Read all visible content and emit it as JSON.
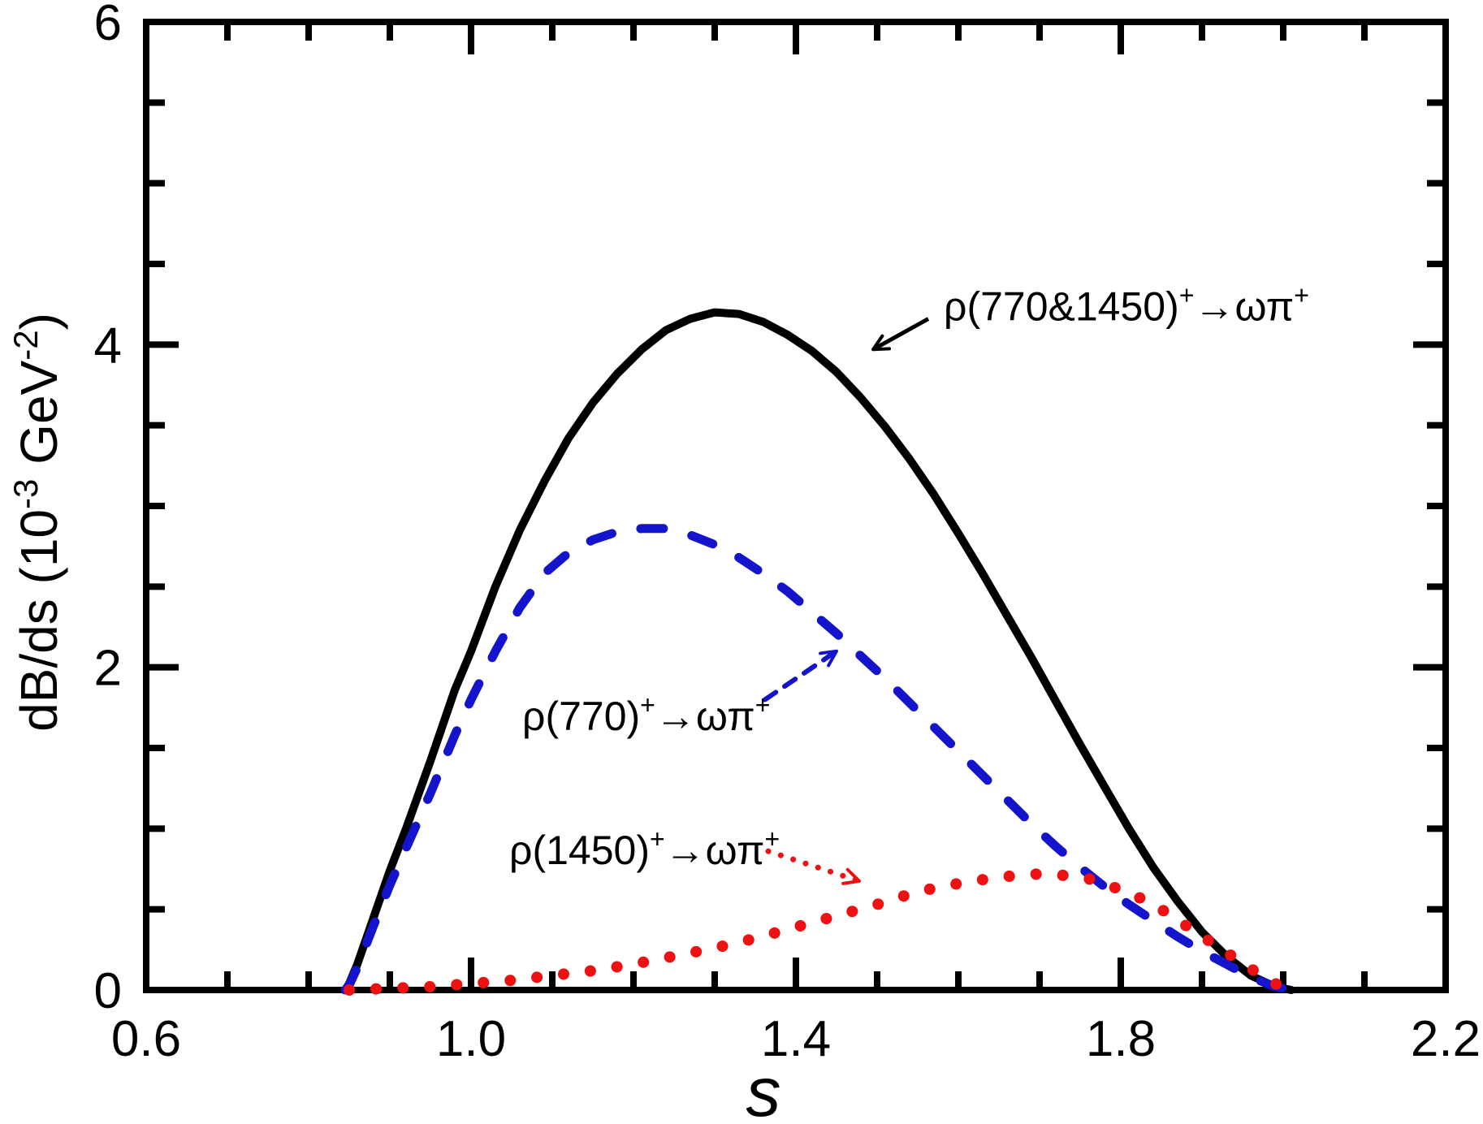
{
  "chart_data": {
    "type": "line",
    "title": "",
    "xlabel": "s",
    "ylabel_parts": [
      {
        "t": "dB/ds (10"
      },
      {
        "t": "-3",
        "sup": true
      },
      {
        "t": " GeV"
      },
      {
        "t": "-2",
        "sup": true
      },
      {
        "t": ")"
      }
    ],
    "background": "#FFFFFF",
    "frame_color": "#000000",
    "grid": false,
    "legend_position": "none (inline annotations with arrows)",
    "x_axis": {
      "min": 0.6,
      "max": 2.2,
      "minor_step": 0.1,
      "major_ticks": [
        {
          "value": 0.6,
          "label": "0.6"
        },
        {
          "value": 1.0,
          "label": "1.0"
        },
        {
          "value": 1.4,
          "label": "1.4"
        },
        {
          "value": 1.8,
          "label": "1.8"
        },
        {
          "value": 2.2,
          "label": "2.2"
        }
      ]
    },
    "y_axis": {
      "min": 0,
      "max": 6,
      "minor_step": 0.5,
      "major_ticks": [
        {
          "value": 0,
          "label": "0"
        },
        {
          "value": 2,
          "label": "2"
        },
        {
          "value": 4,
          "label": "4"
        },
        {
          "value": 6,
          "label": "6"
        }
      ]
    },
    "series": [
      {
        "id": "rho-770-and-1450",
        "label_parts": [
          {
            "t": "ρ(770&1450)"
          },
          {
            "t": "+",
            "sup": true
          },
          {
            "t": "→ωπ"
          },
          {
            "t": "+",
            "sup": true
          }
        ],
        "color": "#000000",
        "style": "solid",
        "peak": {
          "x": 1.3,
          "y": 4.2
        },
        "points": [
          [
            0.845,
            0
          ],
          [
            0.85,
            0.04
          ],
          [
            0.86,
            0.16
          ],
          [
            0.88,
            0.45
          ],
          [
            0.9,
            0.74
          ],
          [
            0.92,
            1.0
          ],
          [
            0.95,
            1.42
          ],
          [
            0.98,
            1.86
          ],
          [
            1.0,
            2.1
          ],
          [
            1.03,
            2.5
          ],
          [
            1.06,
            2.85
          ],
          [
            1.09,
            3.15
          ],
          [
            1.12,
            3.42
          ],
          [
            1.15,
            3.64
          ],
          [
            1.18,
            3.82
          ],
          [
            1.21,
            3.97
          ],
          [
            1.24,
            4.09
          ],
          [
            1.27,
            4.16
          ],
          [
            1.3,
            4.2
          ],
          [
            1.33,
            4.19
          ],
          [
            1.36,
            4.14
          ],
          [
            1.39,
            4.06
          ],
          [
            1.42,
            3.96
          ],
          [
            1.45,
            3.83
          ],
          [
            1.48,
            3.67
          ],
          [
            1.51,
            3.49
          ],
          [
            1.54,
            3.29
          ],
          [
            1.57,
            3.07
          ],
          [
            1.6,
            2.83
          ],
          [
            1.63,
            2.58
          ],
          [
            1.66,
            2.32
          ],
          [
            1.69,
            2.06
          ],
          [
            1.72,
            1.79
          ],
          [
            1.75,
            1.52
          ],
          [
            1.78,
            1.26
          ],
          [
            1.81,
            1.0
          ],
          [
            1.84,
            0.76
          ],
          [
            1.87,
            0.55
          ],
          [
            1.9,
            0.36
          ],
          [
            1.93,
            0.21
          ],
          [
            1.96,
            0.09
          ],
          [
            1.99,
            0.02
          ],
          [
            2.01,
            0
          ]
        ]
      },
      {
        "id": "rho-770",
        "label_parts": [
          {
            "t": "ρ(770)"
          },
          {
            "t": "+",
            "sup": true
          },
          {
            "t": "→ωπ"
          },
          {
            "t": "+",
            "sup": true
          }
        ],
        "color": "#1414CC",
        "style": "dashed",
        "peak": {
          "x": 1.23,
          "y": 2.86
        },
        "points": [
          [
            0.845,
            0
          ],
          [
            0.85,
            0.03
          ],
          [
            0.86,
            0.14
          ],
          [
            0.88,
            0.4
          ],
          [
            0.9,
            0.65
          ],
          [
            0.92,
            0.88
          ],
          [
            0.95,
            1.22
          ],
          [
            0.98,
            1.58
          ],
          [
            1.0,
            1.8
          ],
          [
            1.03,
            2.1
          ],
          [
            1.06,
            2.37
          ],
          [
            1.09,
            2.58
          ],
          [
            1.12,
            2.71
          ],
          [
            1.15,
            2.79
          ],
          [
            1.18,
            2.84
          ],
          [
            1.21,
            2.86
          ],
          [
            1.24,
            2.86
          ],
          [
            1.27,
            2.82
          ],
          [
            1.3,
            2.76
          ],
          [
            1.33,
            2.68
          ],
          [
            1.36,
            2.58
          ],
          [
            1.39,
            2.47
          ],
          [
            1.42,
            2.34
          ],
          [
            1.45,
            2.21
          ],
          [
            1.48,
            2.07
          ],
          [
            1.51,
            1.93
          ],
          [
            1.54,
            1.78
          ],
          [
            1.57,
            1.63
          ],
          [
            1.6,
            1.48
          ],
          [
            1.63,
            1.33
          ],
          [
            1.66,
            1.18
          ],
          [
            1.69,
            1.03
          ],
          [
            1.72,
            0.89
          ],
          [
            1.75,
            0.76
          ],
          [
            1.78,
            0.64
          ],
          [
            1.81,
            0.53
          ],
          [
            1.84,
            0.43
          ],
          [
            1.87,
            0.33
          ],
          [
            1.9,
            0.24
          ],
          [
            1.93,
            0.16
          ],
          [
            1.96,
            0.08
          ],
          [
            1.99,
            0.02
          ],
          [
            2.01,
            0
          ]
        ]
      },
      {
        "id": "rho-1450",
        "label_parts": [
          {
            "t": "ρ(1450)"
          },
          {
            "t": "+",
            "sup": true
          },
          {
            "t": "→ωπ"
          },
          {
            "t": "+",
            "sup": true
          }
        ],
        "color": "#EE1111",
        "style": "dotted",
        "peak": {
          "x": 1.7,
          "y": 0.72
        },
        "points": [
          [
            0.85,
            0
          ],
          [
            0.9,
            0.01
          ],
          [
            0.95,
            0.02
          ],
          [
            1.0,
            0.04
          ],
          [
            1.05,
            0.06
          ],
          [
            1.1,
            0.09
          ],
          [
            1.15,
            0.12
          ],
          [
            1.2,
            0.16
          ],
          [
            1.25,
            0.21
          ],
          [
            1.3,
            0.26
          ],
          [
            1.35,
            0.32
          ],
          [
            1.4,
            0.39
          ],
          [
            1.45,
            0.46
          ],
          [
            1.5,
            0.53
          ],
          [
            1.55,
            0.61
          ],
          [
            1.6,
            0.66
          ],
          [
            1.65,
            0.7
          ],
          [
            1.7,
            0.72
          ],
          [
            1.73,
            0.71
          ],
          [
            1.76,
            0.69
          ],
          [
            1.79,
            0.64
          ],
          [
            1.82,
            0.58
          ],
          [
            1.85,
            0.5
          ],
          [
            1.88,
            0.4
          ],
          [
            1.91,
            0.3
          ],
          [
            1.94,
            0.2
          ],
          [
            1.97,
            0.1
          ],
          [
            1.99,
            0.04
          ],
          [
            2.01,
            0
          ]
        ]
      }
    ],
    "annotations": [
      {
        "series": "rho-770-and-1450",
        "color": "#000000",
        "text_parts": [
          {
            "t": "ρ(770&1450)"
          },
          {
            "t": "+",
            "sup": true
          },
          {
            "t": "→ωπ"
          },
          {
            "t": "+",
            "sup": true
          }
        ],
        "text_at": {
          "x": 1.582,
          "y": 4.15
        },
        "arrow": {
          "style": "solid",
          "from": {
            "x": 1.563,
            "y": 4.16
          },
          "to": {
            "x": 1.495,
            "y": 3.97
          }
        }
      },
      {
        "series": "rho-770",
        "color": "#1414CC",
        "text_parts": [
          {
            "t": "ρ(770)"
          },
          {
            "t": "+",
            "sup": true
          },
          {
            "t": "→ωπ"
          },
          {
            "t": "+",
            "sup": true
          }
        ],
        "text_at": {
          "x": 1.063,
          "y": 1.61
        },
        "arrow": {
          "style": "dashed",
          "from": {
            "x": 1.362,
            "y": 1.8
          },
          "to": {
            "x": 1.45,
            "y": 2.1
          }
        }
      },
      {
        "series": "rho-1450",
        "color": "#EE1111",
        "text_parts": [
          {
            "t": "ρ(1450)"
          },
          {
            "t": "+",
            "sup": true
          },
          {
            "t": "→ωπ"
          },
          {
            "t": "+",
            "sup": true
          }
        ],
        "text_at": {
          "x": 1.047,
          "y": 0.78
        },
        "arrow": {
          "style": "dotted",
          "from": {
            "x": 1.366,
            "y": 0.86
          },
          "to": {
            "x": 1.478,
            "y": 0.675
          }
        }
      }
    ]
  }
}
